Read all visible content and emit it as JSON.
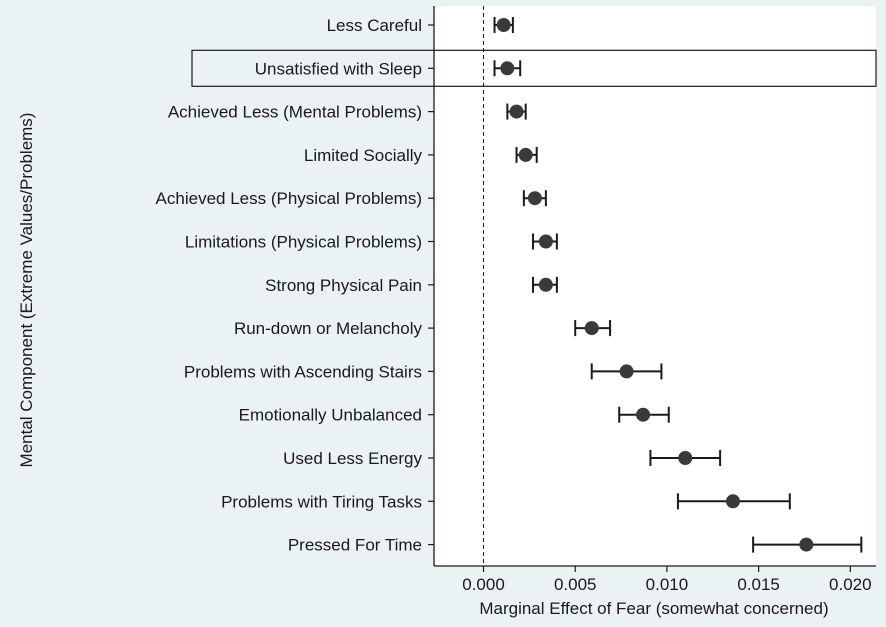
{
  "chart_data": {
    "type": "scatter",
    "title": "",
    "xlabel": "Marginal Effect of Fear (somewhat concerned)",
    "ylabel": "Mental Component (Extreme Values/Problems)",
    "xlim": [
      -0.0027,
      0.0214
    ],
    "xticks": [
      0.0,
      0.005,
      0.01,
      0.015,
      0.02
    ],
    "xtick_labels": [
      "0.000",
      "0.005",
      "0.010",
      "0.015",
      "0.020"
    ],
    "reference_line": {
      "x": 0.0,
      "style": "dashed"
    },
    "grid": false,
    "legend": "none",
    "highlighted_category": "Unsatisfied with Sleep",
    "categories": [
      "Less Careful",
      "Unsatisfied with Sleep",
      "Achieved Less (Mental Problems)",
      "Limited Socially",
      "Achieved Less (Physical Problems)",
      "Limitations (Physical Problems)",
      "Strong Physical Pain",
      "Run-down or Melancholy",
      "Problems with Ascending Stairs",
      "Emotionally Unbalanced",
      "Used Less Energy",
      "Problems with Tiring Tasks",
      "Pressed For Time"
    ],
    "estimates": [
      0.0011,
      0.0013,
      0.0018,
      0.0023,
      0.0028,
      0.0034,
      0.0034,
      0.0059,
      0.0078,
      0.0087,
      0.011,
      0.0136,
      0.0176
    ],
    "ci_low": [
      0.0006,
      0.0006,
      0.0013,
      0.0018,
      0.0022,
      0.0027,
      0.0027,
      0.005,
      0.0059,
      0.0074,
      0.0091,
      0.0106,
      0.0147
    ],
    "ci_high": [
      0.0016,
      0.002,
      0.0023,
      0.0029,
      0.0034,
      0.004,
      0.004,
      0.0069,
      0.0097,
      0.0101,
      0.0129,
      0.0167,
      0.0206
    ]
  },
  "colors": {
    "background": "#ffffff",
    "plot_background": "#ffffff",
    "outer_background": "#eaf2f3",
    "marker": "#3a3a3a",
    "errorbar": "#1a1a1a",
    "axis": "#1a1a1a"
  }
}
